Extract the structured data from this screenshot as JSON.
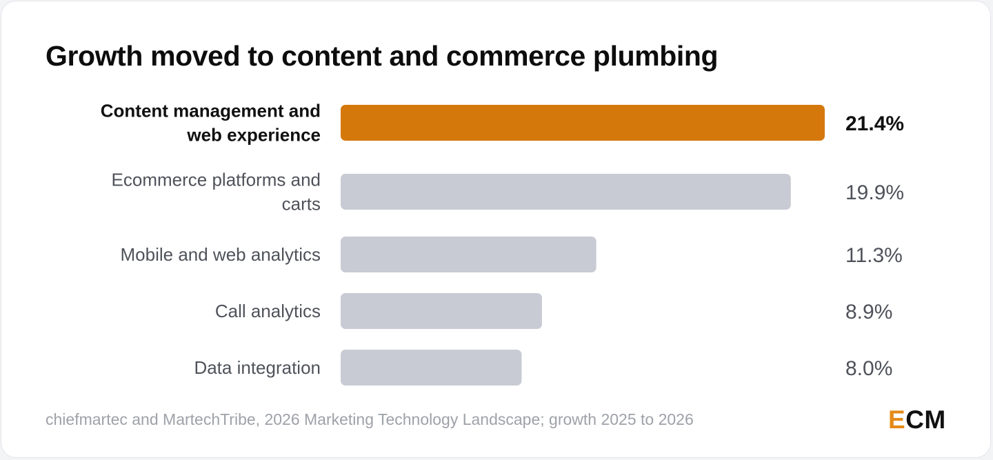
{
  "chart_data": {
    "type": "bar",
    "orientation": "horizontal",
    "title": "Growth moved to content and commerce plumbing",
    "categories": [
      "Content management and web experience",
      "Ecommerce platforms and carts",
      "Mobile and web analytics",
      "Call analytics",
      "Data integration"
    ],
    "values": [
      21.4,
      19.9,
      11.3,
      8.9,
      8.0
    ],
    "value_labels": [
      "21.4%",
      "19.9%",
      "11.3%",
      "8.9%",
      "8.0%"
    ],
    "highlight_index": 0,
    "xlim": [
      0,
      21.4
    ],
    "grid": false,
    "legend": "none"
  },
  "colors": {
    "highlight_bar": "#d4780b",
    "default_bar": "#c8cbd3",
    "logo_accent": "#e58a17"
  },
  "footer": {
    "source": "chiefmartec and MartechTribe, 2026 Marketing Technology Landscape; growth 2025 to 2026"
  },
  "logo": {
    "first": "E",
    "rest": "CM"
  }
}
